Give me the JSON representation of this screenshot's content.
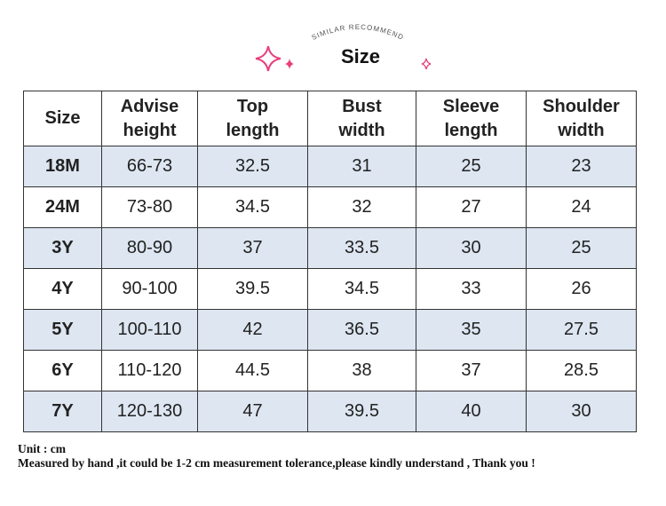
{
  "header": {
    "tagline": "SIMILAR RECOMMEND",
    "title": "Size"
  },
  "table": {
    "columns": [
      [
        "Size"
      ],
      [
        "Advise",
        "height"
      ],
      [
        "Top",
        "length"
      ],
      [
        "Bust",
        "width"
      ],
      [
        "Sleeve",
        "length"
      ],
      [
        "Shoulder",
        "width"
      ]
    ],
    "rows": [
      [
        "18M",
        "66-73",
        "32.5",
        "31",
        "25",
        "23"
      ],
      [
        "24M",
        "73-80",
        "34.5",
        "32",
        "27",
        "24"
      ],
      [
        "3Y",
        "80-90",
        "37",
        "33.5",
        "30",
        "25"
      ],
      [
        "4Y",
        "90-100",
        "39.5",
        "34.5",
        "33",
        "26"
      ],
      [
        "5Y",
        "100-110",
        "42",
        "36.5",
        "35",
        "27.5"
      ],
      [
        "6Y",
        "110-120",
        "44.5",
        "38",
        "37",
        "28.5"
      ],
      [
        "7Y",
        "120-130",
        "47",
        "39.5",
        "40",
        "30"
      ]
    ]
  },
  "footer": {
    "unit": "Unit : cm",
    "note": "Measured by hand ,it could be 1-2 cm measurement tolerance,please kindly understand , Thank you !"
  }
}
